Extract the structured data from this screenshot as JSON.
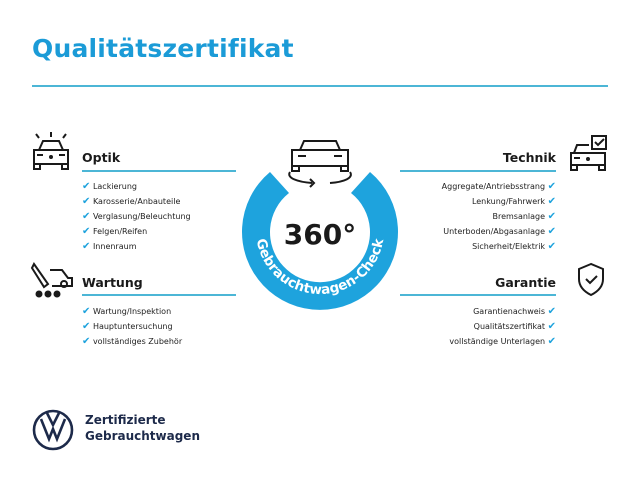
{
  "title": "Qualitätszertifikat",
  "accent": "#1ea3dd",
  "center": {
    "label": "360°",
    "ring_text": "Gebrauchtwagen-Check",
    "icon": "car-360-rotation-icon"
  },
  "sections": {
    "optik": {
      "title": "Optik",
      "icon": "car-lights-icon",
      "items": [
        "Lackierung",
        "Karosserie/Anbauteile",
        "Verglasung/Beleuchtung",
        "Felgen/Reifen",
        "Innenraum"
      ]
    },
    "wartung": {
      "title": "Wartung",
      "icon": "car-wrench-icon",
      "items": [
        "Wartung/Inspektion",
        "Hauptuntersuchung",
        "vollständiges Zubehör"
      ]
    },
    "technik": {
      "title": "Technik",
      "icon": "car-checkbox-icon",
      "items": [
        "Aggregate/Antriebsstrang",
        "Lenkung/Fahrwerk",
        "Bremsanlage",
        "Unterboden/Abgasanlage",
        "Sicherheit/Elektrik"
      ]
    },
    "garantie": {
      "title": "Garantie",
      "icon": "shield-check-icon",
      "items": [
        "Garantienachweis",
        "Qualitätszertifikat",
        "vollständige Unterlagen"
      ]
    }
  },
  "check_mark": "✔",
  "brand": {
    "line1": "Zertifizierte",
    "line2": "Gebrauchtwagen",
    "logo": "vw-logo"
  }
}
